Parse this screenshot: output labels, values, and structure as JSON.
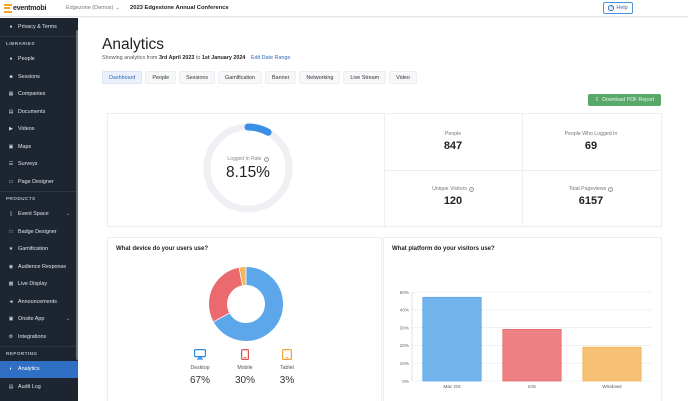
{
  "header": {
    "logo_text": "eventmobi",
    "org_name": "Edgezone (Demos)",
    "event_title": "2023 Edgestone Annual Conference",
    "help_label": "Help"
  },
  "sidebar": {
    "items_top": [
      {
        "label": "Privacy & Terms",
        "icon": "user-shield-icon"
      }
    ],
    "section_libraries": "LIBRARIES",
    "libraries": [
      {
        "label": "People",
        "icon": "people-icon"
      },
      {
        "label": "Sessions",
        "icon": "calendar-icon"
      },
      {
        "label": "Companies",
        "icon": "building-icon"
      },
      {
        "label": "Documents",
        "icon": "document-icon"
      },
      {
        "label": "Videos",
        "icon": "video-icon"
      },
      {
        "label": "Maps",
        "icon": "map-icon"
      },
      {
        "label": "Surveys",
        "icon": "survey-icon"
      },
      {
        "label": "Page Designer",
        "icon": "page-icon"
      }
    ],
    "section_products": "PRODUCTS",
    "products": [
      {
        "label": "Event Space",
        "icon": "device-icon",
        "has_chevron": true
      },
      {
        "label": "Badge Designer",
        "icon": "badge-icon"
      },
      {
        "label": "Gamification",
        "icon": "trophy-icon"
      },
      {
        "label": "Audience Response",
        "icon": "chat-icon"
      },
      {
        "label": "Live Display",
        "icon": "monitor-icon"
      },
      {
        "label": "Announcements",
        "icon": "megaphone-icon"
      },
      {
        "label": "Onsite App",
        "icon": "lock-icon",
        "has_chevron": true
      },
      {
        "label": "Integrations",
        "icon": "plug-icon"
      }
    ],
    "section_reporting": "REPORTING",
    "reporting": [
      {
        "label": "Analytics",
        "icon": "analytics-icon",
        "active": true
      },
      {
        "label": "Audit Log",
        "icon": "log-icon"
      }
    ]
  },
  "page": {
    "title": "Analytics",
    "showing_prefix": "Showing analytics from",
    "date_from": "3rd April 2023",
    "to_word": "to",
    "date_to": "1st January 2024",
    "edit_range": "Edit Date Range",
    "tabs": [
      "Dashboard",
      "People",
      "Sessions",
      "Gamification",
      "Banner",
      "Networking",
      "Live Stream",
      "Video"
    ],
    "active_tab": "Dashboard",
    "download_label": "Download PDF Report"
  },
  "kpis": {
    "logged_in_rate_label": "Logged In Rate",
    "logged_in_rate_value": "8.15%",
    "logged_in_rate_fraction": 0.0815,
    "people_label": "People",
    "people_value": "847",
    "people_logged_label": "People Who Logged In",
    "people_logged_value": "69",
    "unique_visitors_label": "Unique Visitors",
    "unique_visitors_value": "120",
    "pageviews_label": "Total Pageviews",
    "pageviews_value": "6157"
  },
  "devices": {
    "title": "What device do your users use?",
    "items": [
      {
        "label": "Desktop",
        "value": "67%",
        "fraction": 0.67,
        "color": "#5ba7ea"
      },
      {
        "label": "Mobile",
        "value": "30%",
        "fraction": 0.3,
        "color": "#ea6a6d"
      },
      {
        "label": "Tablet",
        "value": "3%",
        "fraction": 0.03,
        "color": "#f5b65c"
      }
    ]
  },
  "platform": {
    "title": "What platform do your visitors use?"
  },
  "colors": {
    "accent": "#2f6fc4",
    "gauge": "#3a8ee6",
    "bar_blue": "#5ba7ea",
    "bar_red": "#ea6a6d",
    "bar_orange": "#f5b65c"
  },
  "chart_data": {
    "type": "bar",
    "categories": [
      "Mac OS",
      "iOS",
      "Windows"
    ],
    "values": [
      47,
      29,
      19
    ],
    "colors": [
      "#5ba7ea",
      "#ea6a6d",
      "#f5b65c"
    ],
    "title": "",
    "xlabel": "",
    "ylabel": "",
    "ylim": [
      0,
      50
    ],
    "yticks": [
      "0%",
      "10%",
      "20%",
      "30%",
      "40%",
      "50%"
    ],
    "grid": true
  }
}
